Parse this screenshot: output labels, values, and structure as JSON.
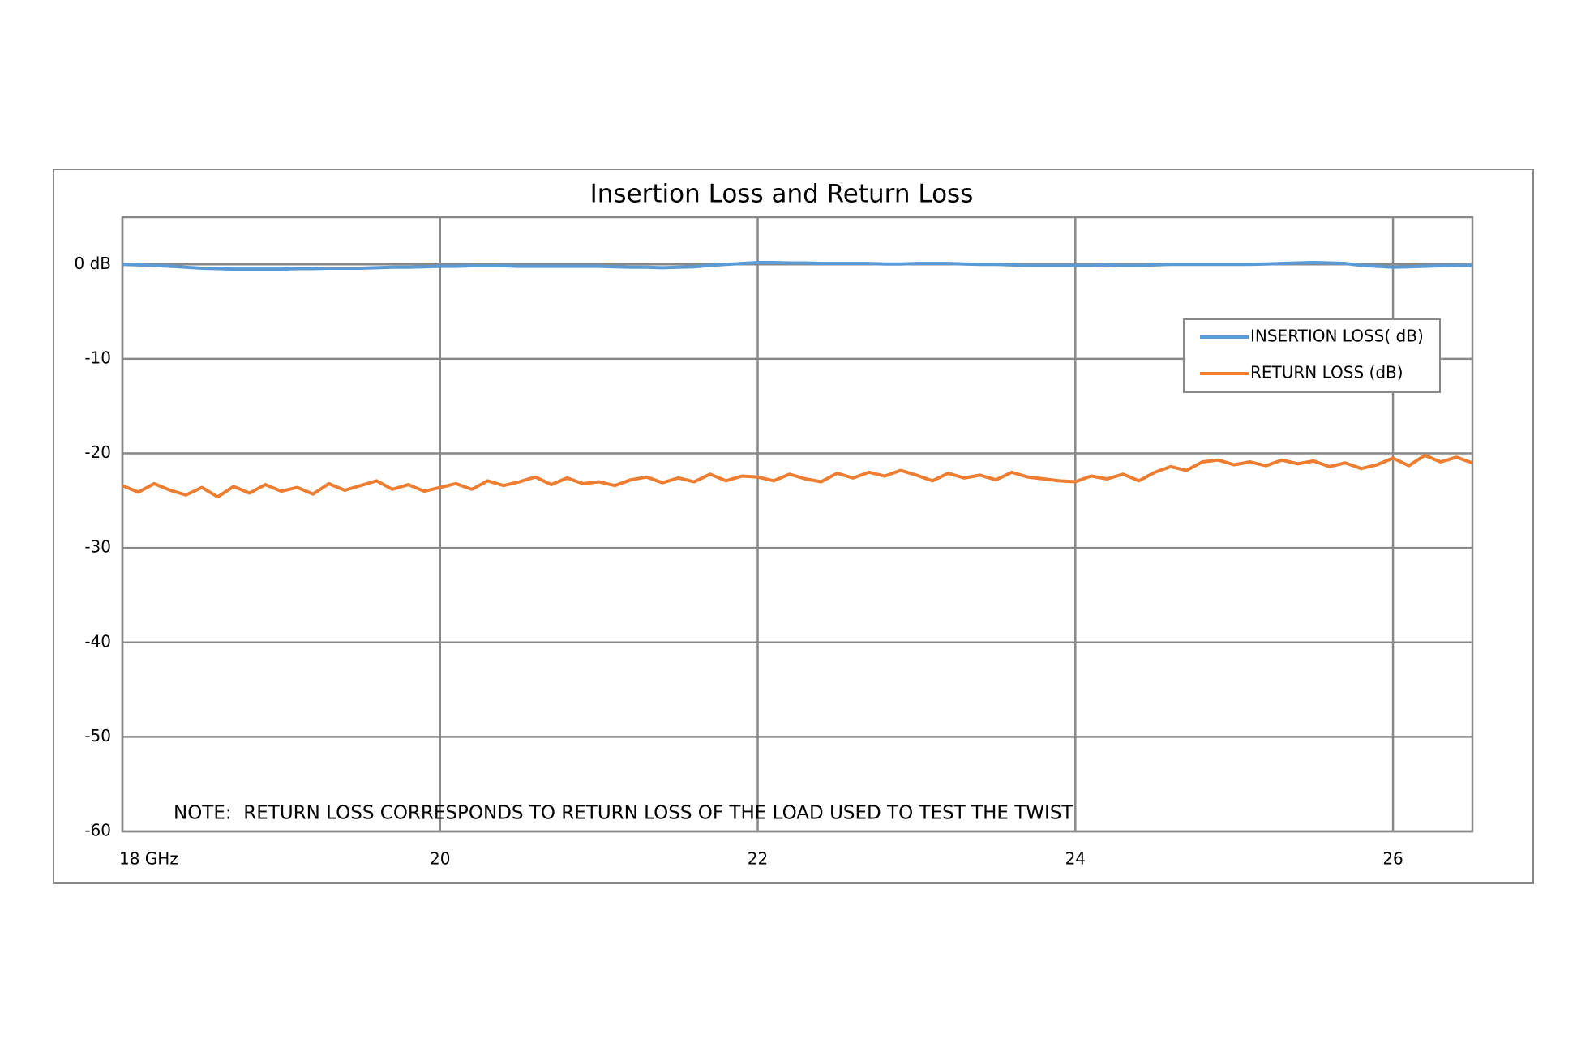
{
  "chart_data": {
    "type": "line",
    "title": "Insertion Loss and Return Loss",
    "annotation": "NOTE:  RETURN LOSS CORRESPONDS TO RETURN LOSS OF THE LOAD USED TO TEST THE TWIST",
    "x": [
      18.0,
      18.1,
      18.2,
      18.3,
      18.4,
      18.5,
      18.6,
      18.7,
      18.8,
      18.9,
      19.0,
      19.1,
      19.2,
      19.3,
      19.4,
      19.5,
      19.6,
      19.7,
      19.8,
      19.9,
      20.0,
      20.1,
      20.2,
      20.3,
      20.4,
      20.5,
      20.6,
      20.7,
      20.8,
      20.9,
      21.0,
      21.1,
      21.2,
      21.3,
      21.4,
      21.5,
      21.6,
      21.7,
      21.8,
      21.9,
      22.0,
      22.1,
      22.2,
      22.3,
      22.4,
      22.5,
      22.6,
      22.7,
      22.8,
      22.9,
      23.0,
      23.1,
      23.2,
      23.3,
      23.4,
      23.5,
      23.6,
      23.7,
      23.8,
      23.9,
      24.0,
      24.1,
      24.2,
      24.3,
      24.4,
      24.5,
      24.6,
      24.7,
      24.8,
      24.9,
      25.0,
      25.1,
      25.2,
      25.3,
      25.4,
      25.5,
      25.6,
      25.7,
      25.8,
      25.9,
      26.0,
      26.1,
      26.2,
      26.3,
      26.4,
      26.5
    ],
    "series": [
      {
        "name": "INSERTION LOSS( dB)",
        "color": "#5b9bd5",
        "values": [
          0,
          -0.05,
          -0.1,
          -0.2,
          -0.3,
          -0.4,
          -0.45,
          -0.5,
          -0.5,
          -0.5,
          -0.5,
          -0.45,
          -0.45,
          -0.4,
          -0.4,
          -0.4,
          -0.35,
          -0.3,
          -0.3,
          -0.25,
          -0.2,
          -0.2,
          -0.15,
          -0.15,
          -0.15,
          -0.2,
          -0.2,
          -0.2,
          -0.2,
          -0.2,
          -0.2,
          -0.25,
          -0.3,
          -0.3,
          -0.35,
          -0.3,
          -0.25,
          -0.1,
          0,
          0.1,
          0.2,
          0.2,
          0.15,
          0.15,
          0.1,
          0.1,
          0.1,
          0.1,
          0.05,
          0.05,
          0.1,
          0.1,
          0.1,
          0.05,
          0,
          0,
          -0.05,
          -0.1,
          -0.1,
          -0.1,
          -0.1,
          -0.1,
          -0.05,
          -0.1,
          -0.1,
          -0.05,
          0,
          0,
          0,
          0,
          0,
          0,
          0.05,
          0.1,
          0.15,
          0.2,
          0.15,
          0.1,
          -0.1,
          -0.2,
          -0.3,
          -0.25,
          -0.2,
          -0.15,
          -0.1,
          -0.1
        ]
      },
      {
        "name": "RETURN LOSS (dB)",
        "color": "#ed7d31",
        "values": [
          -23.4,
          -24.1,
          -23.2,
          -23.9,
          -24.4,
          -23.6,
          -24.6,
          -23.5,
          -24.2,
          -23.3,
          -24.0,
          -23.6,
          -24.3,
          -23.2,
          -23.9,
          -23.4,
          -22.9,
          -23.8,
          -23.3,
          -24.0,
          -23.6,
          -23.2,
          -23.8,
          -22.9,
          -23.4,
          -23.0,
          -22.5,
          -23.3,
          -22.6,
          -23.2,
          -23.0,
          -23.4,
          -22.8,
          -22.5,
          -23.1,
          -22.6,
          -23.0,
          -22.2,
          -22.9,
          -22.4,
          -22.5,
          -22.9,
          -22.2,
          -22.7,
          -23.0,
          -22.1,
          -22.6,
          -22.0,
          -22.4,
          -21.8,
          -22.3,
          -22.9,
          -22.1,
          -22.6,
          -22.3,
          -22.8,
          -22.0,
          -22.5,
          -22.7,
          -22.9,
          -23.0,
          -22.4,
          -22.7,
          -22.2,
          -22.9,
          -22.0,
          -21.4,
          -21.8,
          -20.9,
          -20.7,
          -21.2,
          -20.9,
          -21.3,
          -20.7,
          -21.1,
          -20.8,
          -21.4,
          -21.0,
          -21.6,
          -21.2,
          -20.5,
          -21.3,
          -20.2,
          -20.9,
          -20.4,
          -21.0
        ]
      }
    ],
    "xlim": [
      18,
      26.5
    ],
    "xticks": [
      {
        "value": 18,
        "label": "18 GHz"
      },
      20,
      22,
      24,
      26
    ],
    "ylim": [
      -60,
      5
    ],
    "yticks": [
      {
        "value": 0,
        "label": "0 dB"
      },
      -10,
      -20,
      -30,
      -40,
      -50,
      -60
    ],
    "grid": true,
    "legend": "upper right"
  }
}
